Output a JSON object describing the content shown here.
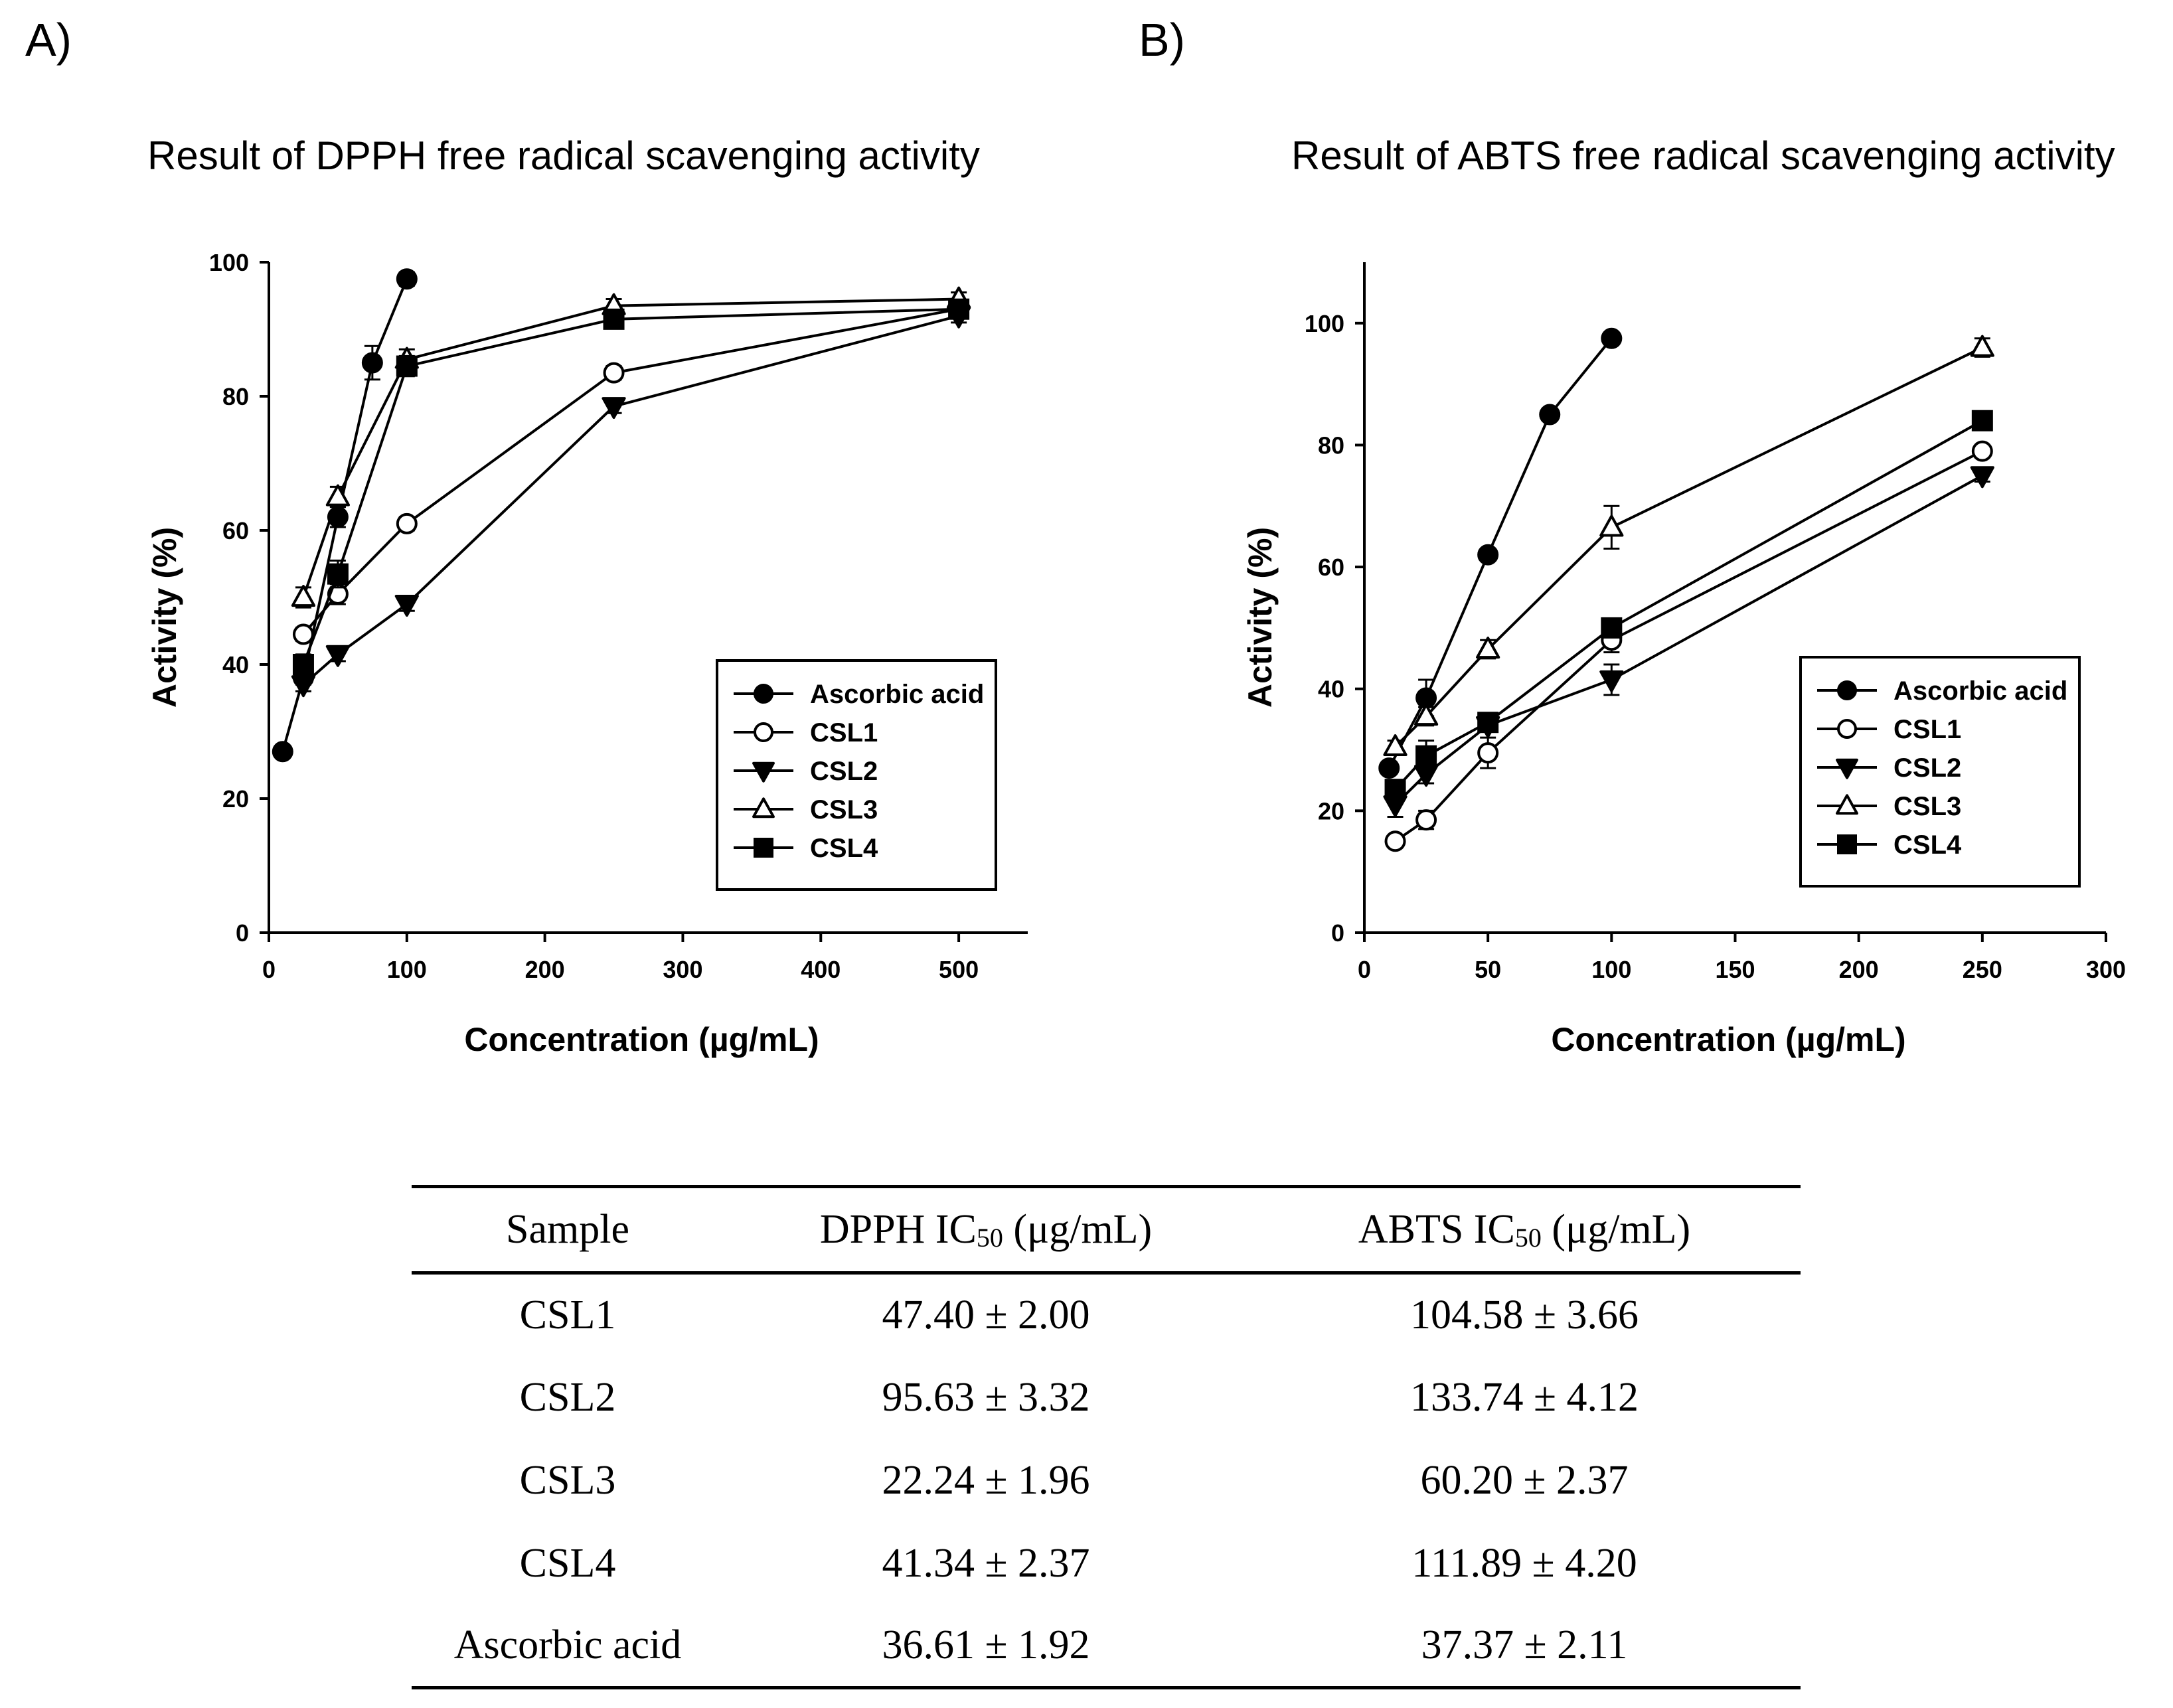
{
  "panels": [
    {
      "letter": "A)",
      "title": "Result of DPPH free radical scavenging activity"
    },
    {
      "letter": "B)",
      "title": "Result of ABTS free radical scavenging activity"
    }
  ],
  "chart_data": [
    {
      "type": "line",
      "title": "Result of DPPH free radical scavenging activity",
      "xlabel": "Concentration (µg/mL)",
      "ylabel": "Activity (%)",
      "xlim": [
        0,
        550
      ],
      "ylim": [
        0,
        100
      ],
      "xticks": [
        0,
        100,
        200,
        300,
        400,
        500
      ],
      "yticks": [
        0,
        20,
        40,
        60,
        80,
        100
      ],
      "grid": false,
      "legend_position": "bottom-right",
      "series": [
        {
          "name": "Ascorbic acid",
          "marker": "filled-circle",
          "x": [
            10,
            25,
            50,
            75,
            100
          ],
          "y": [
            27,
            38,
            62,
            85,
            97.5
          ],
          "err": [
            0,
            1,
            1.5,
            2.5,
            1
          ]
        },
        {
          "name": "CSL1",
          "marker": "open-circle",
          "x": [
            25,
            50,
            100,
            250,
            500
          ],
          "y": [
            44.5,
            50.5,
            61,
            83.5,
            93
          ],
          "err": [
            1,
            1.5,
            1,
            1,
            1
          ]
        },
        {
          "name": "CSL2",
          "marker": "filled-triangle-down",
          "x": [
            25,
            50,
            100,
            250,
            500
          ],
          "y": [
            37,
            41.5,
            49,
            78.5,
            92
          ],
          "err": [
            1,
            1,
            1,
            1,
            1
          ]
        },
        {
          "name": "CSL3",
          "marker": "open-triangle-up",
          "x": [
            25,
            50,
            100,
            250,
            500
          ],
          "y": [
            50,
            65,
            85.5,
            93.5,
            94.5
          ],
          "err": [
            1.5,
            1.5,
            1.5,
            1,
            1
          ]
        },
        {
          "name": "CSL4",
          "marker": "filled-square",
          "x": [
            25,
            50,
            100,
            250,
            500
          ],
          "y": [
            40,
            53.5,
            84.5,
            91.5,
            93
          ],
          "err": [
            1.5,
            2,
            1.5,
            1,
            1
          ]
        }
      ]
    },
    {
      "type": "line",
      "title": "Result of ABTS free radical scavenging activity",
      "xlabel": "Concentration (µg/mL)",
      "ylabel": "Activity (%)",
      "xlim": [
        0,
        300
      ],
      "ylim": [
        0,
        110
      ],
      "xticks": [
        0,
        50,
        100,
        150,
        200,
        250,
        300
      ],
      "yticks": [
        0,
        20,
        40,
        60,
        80,
        100
      ],
      "grid": false,
      "legend_position": "bottom-right",
      "series": [
        {
          "name": "Ascorbic acid",
          "marker": "filled-circle",
          "x": [
            10,
            25,
            50,
            75,
            100
          ],
          "y": [
            27,
            38.5,
            62,
            85,
            97.5
          ],
          "err": [
            1,
            3,
            1,
            1,
            1
          ]
        },
        {
          "name": "CSL1",
          "marker": "open-circle",
          "x": [
            12.5,
            25,
            50,
            100,
            250
          ],
          "y": [
            15,
            18.5,
            29.5,
            48,
            79
          ],
          "err": [
            1,
            1.5,
            2.5,
            2,
            1
          ]
        },
        {
          "name": "CSL2",
          "marker": "filled-triangle-down",
          "x": [
            12.5,
            25,
            50,
            100,
            250
          ],
          "y": [
            21,
            26,
            34,
            41.5,
            75
          ],
          "err": [
            2,
            1.5,
            1,
            2.5,
            1
          ]
        },
        {
          "name": "CSL3",
          "marker": "open-triangle-up",
          "x": [
            12.5,
            25,
            50,
            100,
            250
          ],
          "y": [
            30.5,
            35.5,
            46.5,
            66.5,
            96
          ],
          "err": [
            1,
            1.5,
            1.5,
            3.5,
            1.5
          ]
        },
        {
          "name": "CSL4",
          "marker": "filled-square",
          "x": [
            12.5,
            25,
            50,
            100,
            250
          ],
          "y": [
            23.5,
            29,
            34.5,
            50,
            84
          ],
          "err": [
            1,
            2.5,
            1,
            1,
            1
          ]
        }
      ]
    }
  ],
  "table": {
    "headers": [
      "Sample",
      "DPPH IC",
      "50",
      " (μg/mL)",
      "ABTS IC",
      "50",
      " (μg/mL)"
    ],
    "rows": [
      [
        "CSL1",
        "47.40 ± 2.00",
        "104.58 ± 3.66"
      ],
      [
        "CSL2",
        "95.63 ± 3.32",
        "133.74 ± 4.12"
      ],
      [
        "CSL3",
        "22.24 ± 1.96",
        "60.20 ± 2.37"
      ],
      [
        "CSL4",
        "41.34 ± 2.37",
        "111.89 ± 4.20"
      ],
      [
        "Ascorbic acid",
        "36.61 ± 1.92",
        "37.37 ± 2.11"
      ]
    ]
  }
}
